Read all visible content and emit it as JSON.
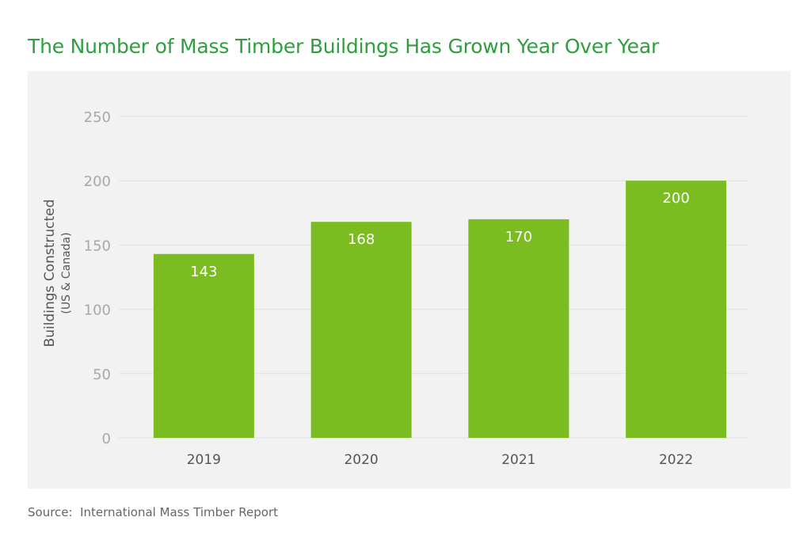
{
  "title": "The Number of Mass Timber Buildings Has Grown Year Over Year",
  "source": "Source:  International Mass Timber Report",
  "chart_data": {
    "type": "bar",
    "title": "The Number of Mass Timber Buildings Has Grown Year Over Year",
    "categories": [
      "2019",
      "2020",
      "2021",
      "2022"
    ],
    "values": [
      143,
      168,
      170,
      200
    ],
    "ylabel": "Buildings Constructed",
    "ylabel_sub": "(US & Canada)",
    "xlabel": "",
    "ylim": [
      0,
      250
    ],
    "yticks": [
      0,
      50,
      100,
      150,
      200,
      250
    ],
    "grid": true,
    "data_labels": true,
    "colors": {
      "bar": "#7bbd21",
      "title": "#2e9e3e",
      "background": "#f2f2f2",
      "grid": "#e0e0e0"
    }
  }
}
